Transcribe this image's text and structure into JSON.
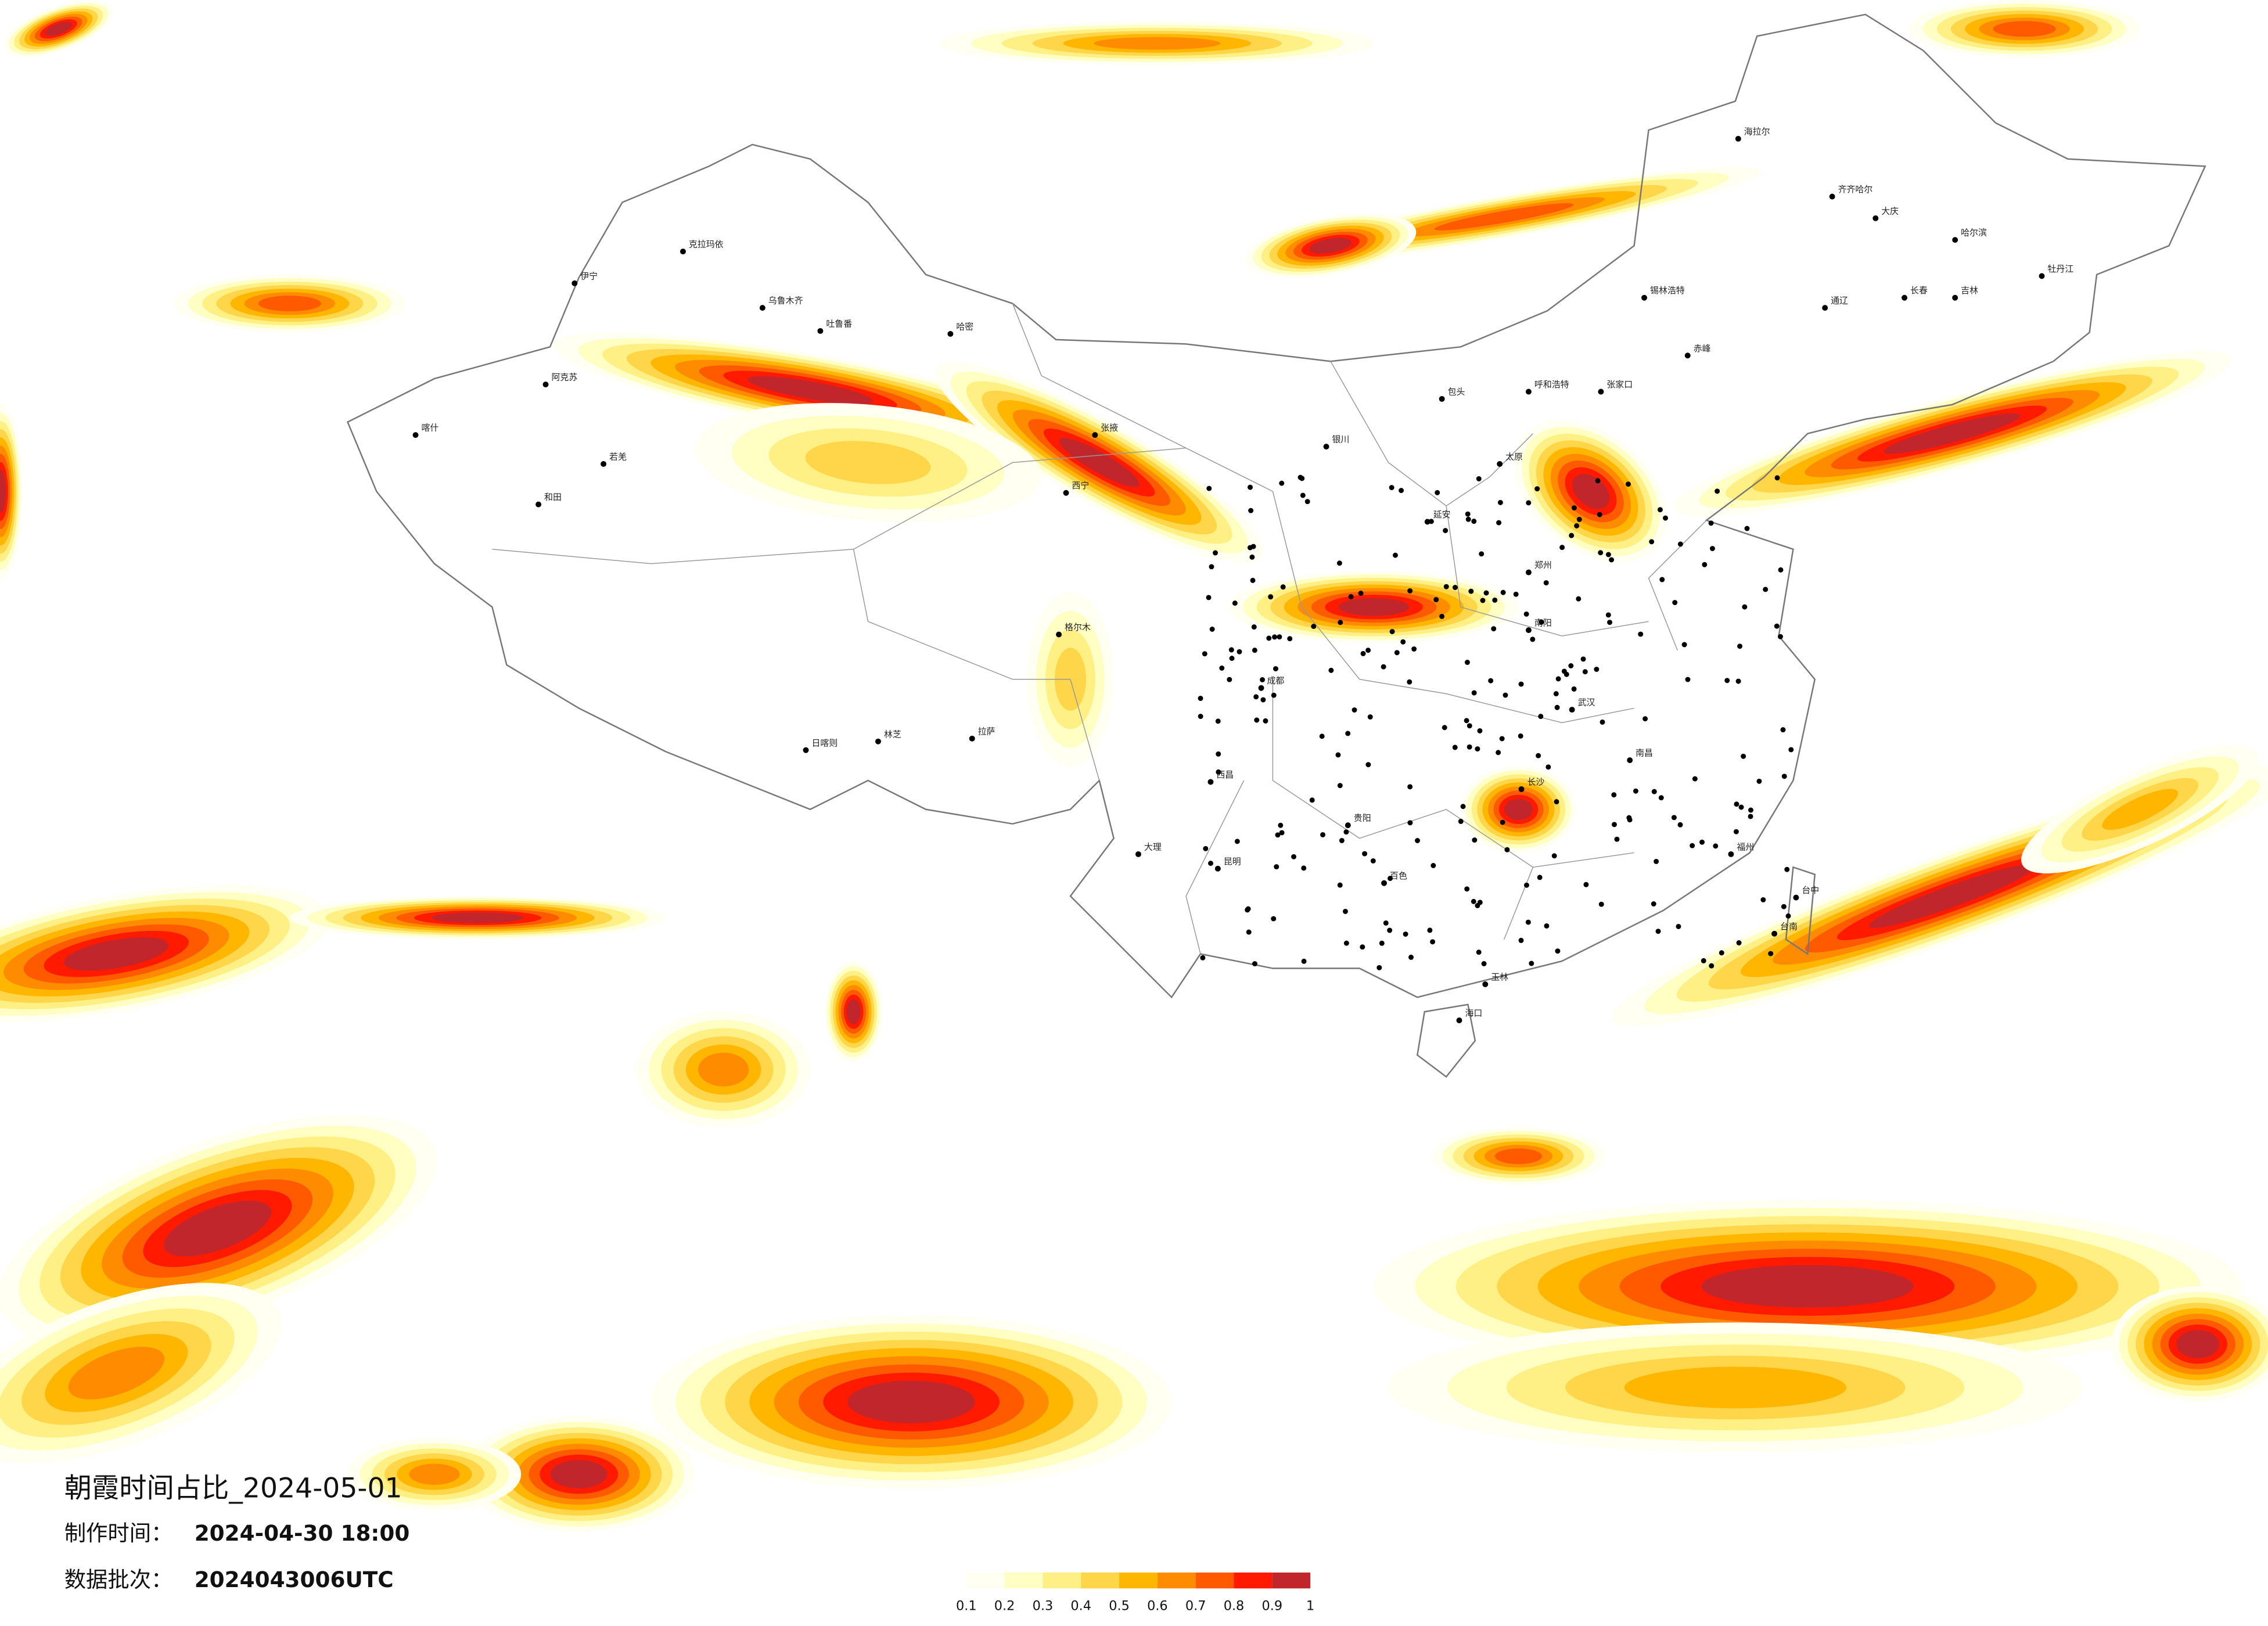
{
  "map": {
    "title": "朝霞时间占比_2024-05-01",
    "info": [
      {
        "label": "制作时间：",
        "value": "2024-04-30 18:00"
      },
      {
        "label": "数据批次：",
        "value": "2024043006UTC"
      }
    ],
    "legend": {
      "colors": [
        "#fffff2",
        "#ffffc4",
        "#fff085",
        "#ffd54a",
        "#ffb600",
        "#ff8c00",
        "#ff5a00",
        "#ff1a00",
        "#c0262c"
      ],
      "ticks": [
        0.1,
        0.2,
        0.3,
        0.4,
        0.5,
        0.6,
        0.7,
        0.8,
        0.9,
        1
      ]
    },
    "cities": [
      "克拉玛依",
      "乌鲁木齐",
      "吐鲁番",
      "哈密",
      "伊宁",
      "阿克苏",
      "喀什",
      "和田",
      "若羌",
      "格尔木",
      "拉萨",
      "日喀则",
      "林芝",
      "西宁",
      "张掖",
      "银川",
      "呼和浩特",
      "包头",
      "锡林浩特",
      "海拉尔",
      "齐齐哈尔",
      "哈尔滨",
      "长春",
      "吉林",
      "牡丹江",
      "大庆",
      "通辽",
      "赤峰",
      "张家口",
      "太原",
      "延安",
      "郑州",
      "南阳",
      "武汉",
      "长沙",
      "南昌",
      "福州",
      "台中",
      "台南",
      "海口",
      "玉林",
      "百色",
      "昆明",
      "大理",
      "西昌",
      "成都",
      "贵阳"
    ]
  }
}
